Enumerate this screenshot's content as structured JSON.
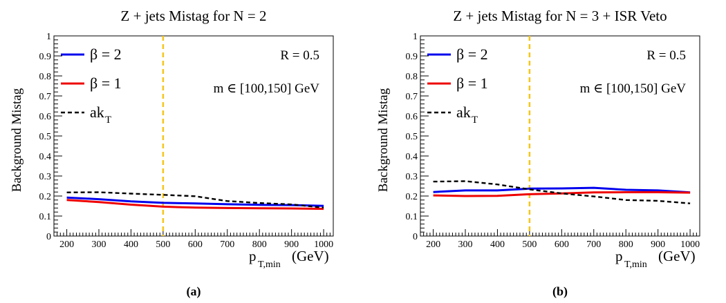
{
  "chart_data": [
    {
      "type": "line",
      "panel_label": "(a)",
      "title": "Z + jets Mistag for N = 2",
      "ylabel": "Background Mistag",
      "xlabel": "p",
      "xlabel_sub": "T,min",
      "xlabel_unit": "(GeV)",
      "xlim": [
        160,
        1030
      ],
      "ylim": [
        0,
        1
      ],
      "xticks": [
        200,
        300,
        400,
        500,
        600,
        700,
        800,
        900,
        1000
      ],
      "yticks": [
        0,
        0.1,
        0.2,
        0.3,
        0.4,
        0.5,
        0.6,
        0.7,
        0.8,
        0.9,
        1
      ],
      "ytick_labels": [
        "0",
        "0.1",
        "0.2",
        "0.3",
        "0.4",
        "0.5",
        "0.6",
        "0.7",
        "0.8",
        "0.9",
        "1"
      ],
      "vline": {
        "x": 500,
        "color": "#f5c518"
      },
      "annotations": [
        "R = 0.5",
        "m ∈ [100,150] GeV"
      ],
      "legend_placement": "top-left",
      "series": [
        {
          "name": "β = 2",
          "legend_symbol": "β",
          "legend_value": "= 2",
          "color": "#0000ee",
          "style": "solid",
          "x": [
            200,
            300,
            400,
            500,
            600,
            700,
            800,
            900,
            1000
          ],
          "y": [
            0.192,
            0.184,
            0.173,
            0.166,
            0.163,
            0.159,
            0.156,
            0.155,
            0.151
          ]
        },
        {
          "name": "β = 1",
          "legend_symbol": "β",
          "legend_value": "= 1",
          "color": "#ee0000",
          "style": "solid",
          "x": [
            200,
            300,
            400,
            500,
            600,
            700,
            800,
            900,
            1000
          ],
          "y": [
            0.18,
            0.17,
            0.157,
            0.147,
            0.142,
            0.14,
            0.139,
            0.138,
            0.136
          ]
        },
        {
          "name": "ak",
          "name_sub": "T",
          "color": "#000000",
          "style": "dashed",
          "x": [
            200,
            300,
            400,
            500,
            600,
            700,
            800,
            900,
            1000
          ],
          "y": [
            0.218,
            0.219,
            0.212,
            0.206,
            0.199,
            0.175,
            0.165,
            0.158,
            0.142
          ]
        }
      ]
    },
    {
      "type": "line",
      "panel_label": "(b)",
      "title": "Z + jets Mistag for N = 3 + ISR Veto",
      "ylabel": "Background Mistag",
      "xlabel": "p",
      "xlabel_sub": "T,min",
      "xlabel_unit": "(GeV)",
      "xlim": [
        160,
        1030
      ],
      "ylim": [
        0,
        1
      ],
      "xticks": [
        200,
        300,
        400,
        500,
        600,
        700,
        800,
        900,
        1000
      ],
      "yticks": [
        0,
        0.1,
        0.2,
        0.3,
        0.4,
        0.5,
        0.6,
        0.7,
        0.8,
        0.9,
        1
      ],
      "ytick_labels": [
        "0",
        "0.1",
        "0.2",
        "0.3",
        "0.4",
        "0.5",
        "0.6",
        "0.7",
        "0.8",
        "0.9",
        "1"
      ],
      "vline": {
        "x": 500,
        "color": "#f5c518"
      },
      "annotations": [
        "R = 0.5",
        "m ∈ [100,150] GeV"
      ],
      "legend_placement": "top-left",
      "series": [
        {
          "name": "β = 2",
          "legend_symbol": "β",
          "legend_value": "= 2",
          "color": "#0000ee",
          "style": "solid",
          "x": [
            200,
            300,
            400,
            500,
            600,
            700,
            800,
            900,
            1000
          ],
          "y": [
            0.22,
            0.228,
            0.228,
            0.237,
            0.238,
            0.241,
            0.231,
            0.228,
            0.218
          ]
        },
        {
          "name": "β = 1",
          "legend_symbol": "β",
          "legend_value": "= 1",
          "color": "#ee0000",
          "style": "solid",
          "x": [
            200,
            300,
            400,
            500,
            600,
            700,
            800,
            900,
            1000
          ],
          "y": [
            0.203,
            0.2,
            0.201,
            0.209,
            0.213,
            0.218,
            0.219,
            0.219,
            0.217
          ]
        },
        {
          "name": "ak",
          "name_sub": "T",
          "color": "#000000",
          "style": "dashed",
          "x": [
            200,
            300,
            400,
            500,
            600,
            700,
            800,
            900,
            1000
          ],
          "y": [
            0.272,
            0.274,
            0.258,
            0.233,
            0.213,
            0.198,
            0.18,
            0.176,
            0.163
          ]
        }
      ]
    }
  ]
}
